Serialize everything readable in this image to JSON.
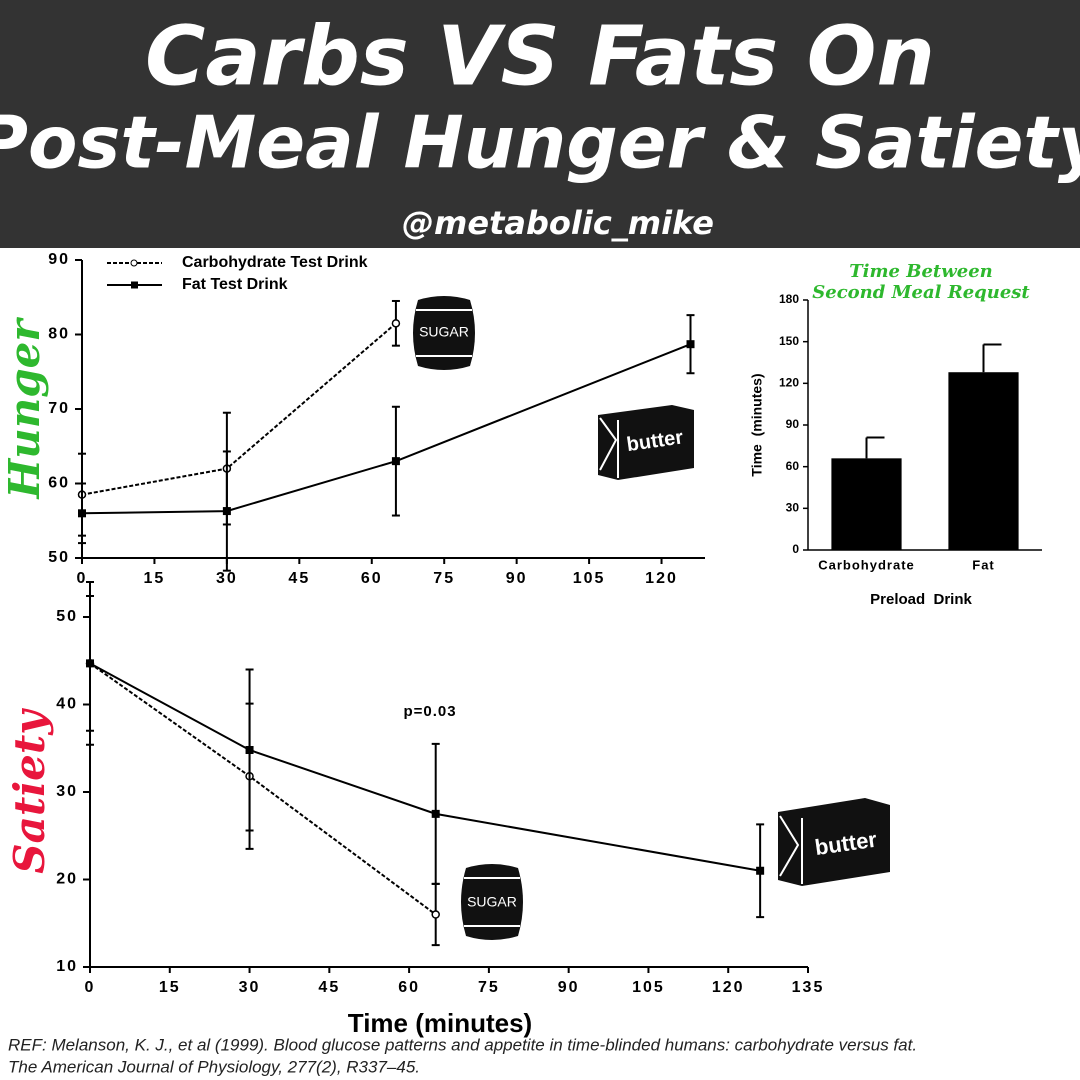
{
  "header": {
    "title_line1": "Carbs VS Fats On",
    "title_line2": "Post-Meal Hunger & Satiety",
    "handle": "@metabolic_mike"
  },
  "icons": {
    "sugar": "SUGAR",
    "butter": "butter"
  },
  "reference": {
    "line1": "REF: Melanson, K. J., et al (1999). Blood glucose patterns and appetite in time-blinded humans: carbohydrate versus fat.",
    "line2": "The American Journal of Physiology, 277(2), R337–45."
  },
  "chart_data": [
    {
      "type": "line",
      "y_label": "Hunger",
      "ylabel_color": "#2eb82e",
      "legend": "upper left",
      "x": [
        0,
        30,
        65,
        126
      ],
      "xlim": [
        0,
        129
      ],
      "xticks": [
        0,
        15,
        30,
        45,
        60,
        75,
        90,
        105,
        120
      ],
      "ylim": [
        50,
        90
      ],
      "yticks": [
        50,
        60,
        70,
        80,
        90
      ],
      "series": [
        {
          "name": "Carbohydrate Test Drink",
          "color": "#000000",
          "line_style": "dashed",
          "marker": "open-circle",
          "values": [
            58.5,
            62,
            81.5,
            null
          ],
          "errors": [
            5.5,
            7.5,
            3,
            null
          ]
        },
        {
          "name": "Fat Test Drink",
          "color": "#000000",
          "line_style": "solid",
          "marker": "filled-square",
          "values": [
            56,
            56.3,
            63,
            78.7
          ],
          "errors": [
            4,
            8,
            7.3,
            3.9
          ]
        }
      ]
    },
    {
      "type": "bar",
      "title": [
        "Time Between",
        "Second Meal Request"
      ],
      "title_color": "#2eb82e",
      "y_label": "Time  (minutes)",
      "x_label": "Preload  Drink",
      "categories": [
        "Carbohydrate",
        "Fat"
      ],
      "values": [
        66,
        128
      ],
      "errors": [
        15,
        20
      ],
      "color": "#000000",
      "ylim": [
        0,
        180
      ],
      "yticks": [
        0,
        30,
        60,
        90,
        120,
        150,
        180
      ]
    },
    {
      "type": "line",
      "y_label": "Satiety",
      "ylabel_color": "#e8163c",
      "x_label": "Time (minutes)",
      "annotation": "p=0.03",
      "x": [
        0,
        30,
        65,
        126
      ],
      "xlim": [
        0,
        135
      ],
      "xticks": [
        0,
        15,
        30,
        45,
        60,
        75,
        90,
        105,
        120,
        135
      ],
      "ylim": [
        10,
        50
      ],
      "yticks": [
        10,
        20,
        30,
        40,
        50
      ],
      "series": [
        {
          "name": "Carbohydrate Test Drink",
          "color": "#000000",
          "line_style": "dashed",
          "marker": "open-circle",
          "values": [
            44.7,
            31.8,
            16,
            null
          ],
          "errors": [
            9.3,
            8.3,
            3.5,
            null
          ]
        },
        {
          "name": "Fat Test Drink",
          "color": "#000000",
          "line_style": "solid",
          "marker": "filled-square",
          "values": [
            44.7,
            34.8,
            27.5,
            21
          ],
          "errors": [
            7.7,
            9.2,
            8,
            5.3
          ]
        }
      ]
    }
  ]
}
